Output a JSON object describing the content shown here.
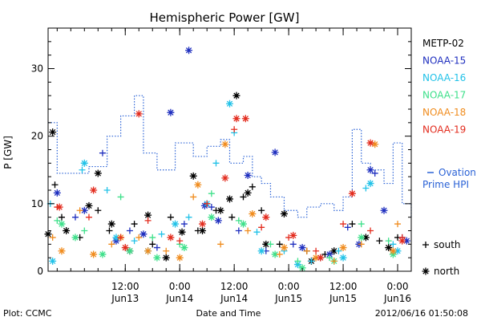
{
  "chart_data": {
    "type": "scatter",
    "title": "Hemispheric Power [GW]",
    "ylabel": "P [GW]",
    "xlabel": "Date and Time",
    "ylim": [
      0,
      36
    ],
    "xlim": [
      "2012-06-12T19:00",
      "2012-06-16T03:00"
    ],
    "yticks": [
      0,
      10,
      20,
      30
    ],
    "xticks": [
      {
        "t": "2012-06-13T12:00",
        "time": "12:00",
        "date": "Jun13"
      },
      {
        "t": "2012-06-14T00:00",
        "time": "0:00",
        "date": "Jun14"
      },
      {
        "t": "2012-06-14T12:00",
        "time": "12:00",
        "date": "Jun14"
      },
      {
        "t": "2012-06-15T00:00",
        "time": "0:00",
        "date": "Jun15"
      },
      {
        "t": "2012-06-15T12:00",
        "time": "12:00",
        "date": "Jun15"
      },
      {
        "t": "2012-06-16T00:00",
        "time": "0:00",
        "date": "Jun16"
      }
    ],
    "legend": {
      "placement": "right"
    },
    "series": [
      {
        "name": "METP-02",
        "color": "#000000",
        "south": [
          [
            "2012-06-12T20:30",
            12.8
          ],
          [
            "2012-06-12T22:00",
            8
          ],
          [
            "2012-06-13T02:00",
            5
          ],
          [
            "2012-06-13T06:00",
            9
          ],
          [
            "2012-06-13T08:30",
            6
          ],
          [
            "2012-06-13T14:00",
            7
          ],
          [
            "2012-06-13T18:00",
            4
          ],
          [
            "2012-06-13T22:00",
            8
          ],
          [
            "2012-06-14T04:00",
            6
          ],
          [
            "2012-06-14T08:00",
            9
          ],
          [
            "2012-06-14T11:30",
            8
          ],
          [
            "2012-06-14T14:00",
            11
          ],
          [
            "2012-06-14T16:00",
            12.5
          ],
          [
            "2012-06-14T18:00",
            9
          ],
          [
            "2012-06-14T22:00",
            4
          ],
          [
            "2012-06-15T04:00",
            3
          ],
          [
            "2012-06-15T08:00",
            2.5
          ],
          [
            "2012-06-15T14:00",
            7
          ],
          [
            "2012-06-15T20:00",
            4.5
          ],
          [
            "2012-06-16T00:00",
            5
          ]
        ],
        "north": [
          [
            "2012-06-12T19:00",
            5.5
          ],
          [
            "2012-06-12T20:00",
            20.6
          ],
          [
            "2012-06-12T23:00",
            6
          ],
          [
            "2012-06-13T04:00",
            9.7
          ],
          [
            "2012-06-13T06:00",
            14.5
          ],
          [
            "2012-06-13T09:00",
            7
          ],
          [
            "2012-06-13T13:00",
            3
          ],
          [
            "2012-06-13T17:00",
            8.3
          ],
          [
            "2012-06-13T21:00",
            2
          ],
          [
            "2012-06-14T00:30",
            5.8
          ],
          [
            "2012-06-14T03:00",
            14.1
          ],
          [
            "2012-06-14T05:00",
            6
          ],
          [
            "2012-06-14T09:00",
            9
          ],
          [
            "2012-06-14T11:00",
            10.7
          ],
          [
            "2012-06-14T12:30",
            26
          ],
          [
            "2012-06-14T15:00",
            11.6
          ],
          [
            "2012-06-14T19:00",
            4
          ],
          [
            "2012-06-14T23:00",
            8.5
          ],
          [
            "2012-06-15T05:00",
            1.5
          ],
          [
            "2012-06-15T10:00",
            3
          ],
          [
            "2012-06-15T17:00",
            5
          ],
          [
            "2012-06-15T22:00",
            3.5
          ]
        ]
      },
      {
        "name": "NOAA-15",
        "color": "#1f2fbf",
        "south": [
          [
            "2012-06-13T01:00",
            8
          ],
          [
            "2012-06-13T07:00",
            17.5
          ],
          [
            "2012-06-13T13:00",
            6
          ],
          [
            "2012-06-13T19:00",
            3.5
          ],
          [
            "2012-06-14T01:00",
            7
          ],
          [
            "2012-06-14T07:00",
            9.5
          ],
          [
            "2012-06-14T13:00",
            6
          ],
          [
            "2012-06-14T19:00",
            3
          ],
          [
            "2012-06-15T01:00",
            4
          ],
          [
            "2012-06-15T07:00",
            2
          ],
          [
            "2012-06-15T13:00",
            6.5
          ],
          [
            "2012-06-15T19:00",
            14.5
          ],
          [
            "2012-06-16T01:00",
            5
          ]
        ],
        "north": [
          [
            "2012-06-12T21:00",
            11.6
          ],
          [
            "2012-06-13T03:00",
            9
          ],
          [
            "2012-06-13T10:00",
            4.5
          ],
          [
            "2012-06-13T16:00",
            5.5
          ],
          [
            "2012-06-13T22:00",
            23.5
          ],
          [
            "2012-06-14T02:00",
            32.7
          ],
          [
            "2012-06-14T05:30",
            9.7
          ],
          [
            "2012-06-14T08:30",
            7.5
          ],
          [
            "2012-06-14T15:00",
            14.2
          ],
          [
            "2012-06-14T21:00",
            17.6
          ],
          [
            "2012-06-15T03:00",
            3.5
          ],
          [
            "2012-06-15T09:00",
            2.5
          ],
          [
            "2012-06-15T15:30",
            4
          ],
          [
            "2012-06-15T18:00",
            15
          ],
          [
            "2012-06-15T21:00",
            9
          ],
          [
            "2012-06-16T02:00",
            4.5
          ]
        ]
      },
      {
        "name": "NOAA-16",
        "color": "#22c2e8",
        "south": [
          [
            "2012-06-12T19:30",
            10
          ],
          [
            "2012-06-13T02:30",
            15
          ],
          [
            "2012-06-13T08:00",
            12
          ],
          [
            "2012-06-13T14:00",
            4.5
          ],
          [
            "2012-06-13T20:00",
            5.5
          ],
          [
            "2012-06-14T02:00",
            8
          ],
          [
            "2012-06-14T08:00",
            16
          ],
          [
            "2012-06-14T12:00",
            20.5
          ],
          [
            "2012-06-14T17:00",
            5.8
          ],
          [
            "2012-06-14T23:00",
            3
          ],
          [
            "2012-06-15T05:00",
            1.5
          ],
          [
            "2012-06-15T11:00",
            3
          ],
          [
            "2012-06-15T17:00",
            12.3
          ],
          [
            "2012-06-15T23:00",
            4
          ]
        ],
        "north": [
          [
            "2012-06-12T20:00",
            1.5
          ],
          [
            "2012-06-13T03:00",
            16
          ],
          [
            "2012-06-13T10:00",
            5
          ],
          [
            "2012-06-13T17:00",
            3
          ],
          [
            "2012-06-13T23:00",
            7
          ],
          [
            "2012-06-14T06:00",
            10
          ],
          [
            "2012-06-14T11:00",
            24.8
          ],
          [
            "2012-06-14T18:00",
            3
          ],
          [
            "2012-06-15T02:00",
            1
          ],
          [
            "2012-06-15T12:00",
            2
          ],
          [
            "2012-06-15T18:00",
            13
          ],
          [
            "2012-06-16T00:00",
            3
          ]
        ]
      },
      {
        "name": "NOAA-17",
        "color": "#3ee08a",
        "south": [
          [
            "2012-06-12T21:00",
            7.5
          ],
          [
            "2012-06-13T03:00",
            6
          ],
          [
            "2012-06-13T11:00",
            11
          ],
          [
            "2012-06-13T18:00",
            5
          ],
          [
            "2012-06-14T00:00",
            4
          ],
          [
            "2012-06-14T07:00",
            11.5
          ],
          [
            "2012-06-14T13:00",
            7.5
          ],
          [
            "2012-06-14T20:00",
            4
          ],
          [
            "2012-06-15T02:00",
            1.5
          ],
          [
            "2012-06-15T09:00",
            2
          ],
          [
            "2012-06-15T16:00",
            7
          ],
          [
            "2012-06-15T22:00",
            4.5
          ]
        ],
        "north": [
          [
            "2012-06-12T22:00",
            7
          ],
          [
            "2012-06-13T01:00",
            5
          ],
          [
            "2012-06-13T07:00",
            2.5
          ],
          [
            "2012-06-13T13:00",
            3
          ],
          [
            "2012-06-13T19:00",
            2
          ],
          [
            "2012-06-14T01:00",
            3.5
          ],
          [
            "2012-06-14T07:00",
            8
          ],
          [
            "2012-06-14T14:00",
            7
          ],
          [
            "2012-06-14T21:00",
            2.5
          ],
          [
            "2012-06-15T03:00",
            0.5
          ],
          [
            "2012-06-15T10:00",
            1.5
          ],
          [
            "2012-06-15T16:00",
            5
          ],
          [
            "2012-06-15T23:00",
            2.5
          ]
        ]
      },
      {
        "name": "NOAA-18",
        "color": "#f08c1e",
        "south": [
          [
            "2012-06-12T20:00",
            5
          ],
          [
            "2012-06-13T02:00",
            9
          ],
          [
            "2012-06-13T09:00",
            4
          ],
          [
            "2012-06-13T15:00",
            5
          ],
          [
            "2012-06-13T21:00",
            3
          ],
          [
            "2012-06-14T03:00",
            11
          ],
          [
            "2012-06-14T09:00",
            4
          ],
          [
            "2012-06-14T15:00",
            6
          ],
          [
            "2012-06-14T22:00",
            2.5
          ],
          [
            "2012-06-15T04:00",
            3
          ],
          [
            "2012-06-15T10:00",
            1.5
          ],
          [
            "2012-06-15T16:00",
            4
          ],
          [
            "2012-06-16T00:00",
            7
          ]
        ],
        "north": [
          [
            "2012-06-12T22:00",
            3
          ],
          [
            "2012-06-13T05:00",
            2.5
          ],
          [
            "2012-06-13T11:00",
            5
          ],
          [
            "2012-06-13T17:00",
            3
          ],
          [
            "2012-06-14T00:00",
            2
          ],
          [
            "2012-06-14T04:00",
            12.8
          ],
          [
            "2012-06-14T10:00",
            18.8
          ],
          [
            "2012-06-14T16:00",
            8.5
          ],
          [
            "2012-06-14T23:00",
            3.5
          ],
          [
            "2012-06-15T06:00",
            2
          ],
          [
            "2012-06-15T12:00",
            3.5
          ],
          [
            "2012-06-15T19:00",
            18.8
          ],
          [
            "2012-06-15T23:00",
            3
          ]
        ]
      },
      {
        "name": "NOAA-19",
        "color": "#e32c1e",
        "south": [
          [
            "2012-06-12T21:00",
            9.5
          ],
          [
            "2012-06-13T04:00",
            8
          ],
          [
            "2012-06-13T11:00",
            5
          ],
          [
            "2012-06-13T17:00",
            7.5
          ],
          [
            "2012-06-14T00:00",
            4.5
          ],
          [
            "2012-06-14T06:00",
            10
          ],
          [
            "2012-06-14T12:00",
            21
          ],
          [
            "2012-06-14T18:00",
            6.5
          ],
          [
            "2012-06-15T00:00",
            5
          ],
          [
            "2012-06-15T06:00",
            3
          ],
          [
            "2012-06-15T12:00",
            7
          ],
          [
            "2012-06-15T18:00",
            6
          ],
          [
            "2012-06-16T01:00",
            5
          ]
        ],
        "north": [
          [
            "2012-06-12T21:30",
            9.5
          ],
          [
            "2012-06-13T05:00",
            12
          ],
          [
            "2012-06-13T12:00",
            3.5
          ],
          [
            "2012-06-13T15:00",
            23.3
          ],
          [
            "2012-06-13T22:00",
            5
          ],
          [
            "2012-06-14T05:00",
            7
          ],
          [
            "2012-06-14T10:00",
            13.8
          ],
          [
            "2012-06-14T12:30",
            22.6
          ],
          [
            "2012-06-14T14:30",
            22.6
          ],
          [
            "2012-06-14T19:00",
            8
          ],
          [
            "2012-06-15T01:00",
            5.3
          ],
          [
            "2012-06-15T07:00",
            2
          ],
          [
            "2012-06-15T14:00",
            11.5
          ],
          [
            "2012-06-15T18:00",
            19
          ],
          [
            "2012-06-16T01:00",
            4.5
          ]
        ]
      }
    ],
    "ovation": {
      "name_line1": "Ovation",
      "name_line2": "Prime HPI",
      "color": "#2a62d6",
      "steps": [
        [
          "2012-06-12T19:00",
          22
        ],
        [
          "2012-06-12T21:00",
          14.5
        ],
        [
          "2012-06-13T04:00",
          15.5
        ],
        [
          "2012-06-13T08:00",
          20
        ],
        [
          "2012-06-13T11:00",
          23
        ],
        [
          "2012-06-13T14:00",
          26
        ],
        [
          "2012-06-13T16:00",
          17.5
        ],
        [
          "2012-06-13T19:00",
          15
        ],
        [
          "2012-06-13T23:00",
          19
        ],
        [
          "2012-06-14T03:00",
          17
        ],
        [
          "2012-06-14T06:00",
          18.5
        ],
        [
          "2012-06-14T09:00",
          19.5
        ],
        [
          "2012-06-14T11:00",
          16
        ],
        [
          "2012-06-14T14:00",
          17
        ],
        [
          "2012-06-14T16:00",
          14
        ],
        [
          "2012-06-14T18:00",
          13
        ],
        [
          "2012-06-14T20:00",
          11
        ],
        [
          "2012-06-14T23:00",
          9
        ],
        [
          "2012-06-15T02:00",
          8
        ],
        [
          "2012-06-15T04:00",
          9.5
        ],
        [
          "2012-06-15T07:00",
          10
        ],
        [
          "2012-06-15T10:00",
          9
        ],
        [
          "2012-06-15T12:00",
          11
        ],
        [
          "2012-06-15T14:00",
          21
        ],
        [
          "2012-06-15T16:00",
          16
        ],
        [
          "2012-06-15T18:00",
          15
        ],
        [
          "2012-06-15T21:00",
          13
        ],
        [
          "2012-06-15T23:00",
          19
        ],
        [
          "2012-06-16T01:00",
          10
        ],
        [
          "2012-06-16T03:00",
          8
        ]
      ]
    },
    "symbol_key": [
      {
        "symbol": "+",
        "label": "south"
      },
      {
        "symbol": "*",
        "label": "north"
      }
    ]
  },
  "footer": {
    "left": "Plot: CCMC",
    "right": "2012/06/16 01:50:08"
  }
}
